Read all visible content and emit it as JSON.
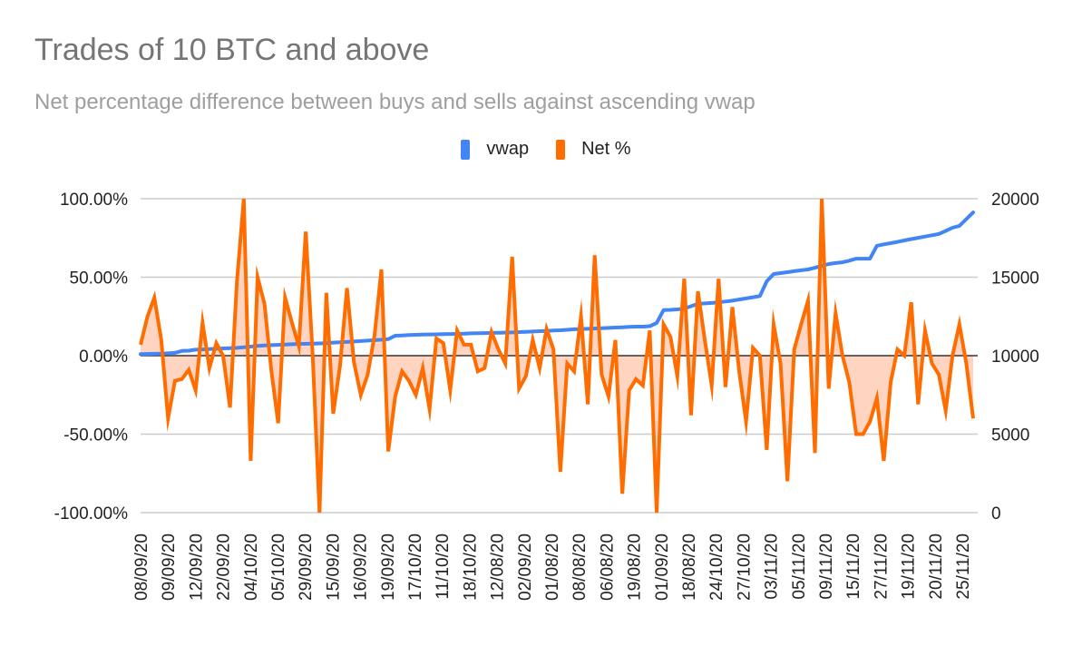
{
  "chart_data": {
    "type": "line",
    "title": "Trades of 10 BTC and above",
    "subtitle": "Net percentage difference between buys and sells against ascending vwap",
    "legend_position": "top-center",
    "grid": true,
    "xlabel": "",
    "ylabel_left": "",
    "ylabel_right": "",
    "y_left": {
      "range": [
        -100,
        100
      ],
      "ticks": [
        100,
        50,
        0,
        -50,
        -100
      ],
      "tick_labels": [
        "100.00%",
        "50.00%",
        "0.00%",
        "-50.00%",
        "-100.00%"
      ]
    },
    "y_right": {
      "range": [
        0,
        20000
      ],
      "ticks": [
        20000,
        15000,
        10000,
        5000,
        0
      ],
      "tick_labels": [
        "20000",
        "15000",
        "10000",
        "5000",
        "0"
      ]
    },
    "x_tick_labels": [
      "08/09/20",
      "09/09/20",
      "12/09/20",
      "22/09/20",
      "04/10/20",
      "05/10/20",
      "29/09/20",
      "15/09/20",
      "16/09/20",
      "19/09/20",
      "17/10/20",
      "11/10/20",
      "18/10/20",
      "12/08/20",
      "02/09/20",
      "01/08/20",
      "08/08/20",
      "06/08/20",
      "19/08/20",
      "01/09/20",
      "18/08/20",
      "24/10/20",
      "27/10/20",
      "03/11/20",
      "05/11/20",
      "09/11/20",
      "15/11/20",
      "27/11/20",
      "19/11/20",
      "20/11/20",
      "25/11/20"
    ],
    "series": [
      {
        "name": "vwap",
        "axis": "right",
        "color": "#4285f4",
        "values": [
          10100,
          10110,
          10120,
          10130,
          10150,
          10180,
          10300,
          10320,
          10380,
          10400,
          10420,
          10440,
          10460,
          10480,
          10500,
          10540,
          10580,
          10620,
          10650,
          10670,
          10690,
          10710,
          10730,
          10750,
          10760,
          10770,
          10780,
          10800,
          10830,
          10850,
          10870,
          10900,
          10930,
          10960,
          10990,
          11020,
          11050,
          11270,
          11290,
          11310,
          11330,
          11340,
          11350,
          11360,
          11370,
          11380,
          11390,
          11400,
          11420,
          11430,
          11440,
          11450,
          11460,
          11470,
          11480,
          11500,
          11520,
          11540,
          11560,
          11580,
          11600,
          11620,
          11650,
          11680,
          11700,
          11710,
          11730,
          11750,
          11770,
          11790,
          11810,
          11830,
          11850,
          11850,
          11880,
          12080,
          12900,
          12920,
          12950,
          13000,
          13150,
          13300,
          13330,
          13360,
          13400,
          13450,
          13500,
          13580,
          13650,
          13720,
          13800,
          14740,
          15200,
          15260,
          15320,
          15380,
          15440,
          15490,
          15600,
          15720,
          15840,
          15900,
          15950,
          16050,
          16180,
          16180,
          16180,
          17000,
          17090,
          17170,
          17250,
          17340,
          17430,
          17510,
          17590,
          17670,
          17750,
          17950,
          18150,
          18270,
          18700,
          19130
        ]
      },
      {
        "name": "Net %",
        "axis": "left",
        "color": "#ff6d01",
        "fill": "#ffd5c2",
        "values": [
          7,
          25,
          37,
          10,
          -40,
          -16,
          -15,
          -9,
          -22,
          21,
          -8,
          8,
          0,
          -33,
          47,
          100,
          -67,
          50,
          33,
          -9,
          -43,
          37,
          21,
          6,
          79,
          1,
          -100,
          40,
          -37,
          -6,
          43,
          -4,
          -25,
          -12,
          13,
          55,
          -61,
          -26,
          -10,
          -16,
          -25,
          -8,
          -34,
          11,
          8,
          -22,
          16,
          7,
          7,
          -10,
          -8,
          15,
          4,
          -5,
          63,
          -21,
          -13,
          10,
          -8,
          17,
          4,
          -74,
          -5,
          -10,
          25,
          -31,
          64,
          -12,
          -26,
          10,
          -88,
          -22,
          -15,
          -19,
          16,
          -100,
          20,
          12,
          -13,
          49,
          -38,
          41,
          10,
          -19,
          49,
          -20,
          31,
          -10,
          -42,
          5,
          0,
          -60,
          20,
          -5,
          -80,
          4,
          20,
          35,
          -62,
          100,
          -21,
          27,
          0,
          -17,
          -50,
          -50,
          -42,
          -27,
          -67,
          -17,
          4,
          0,
          34,
          -31,
          16,
          -5,
          -12,
          -35,
          0,
          20,
          -5,
          -40
        ]
      }
    ]
  }
}
